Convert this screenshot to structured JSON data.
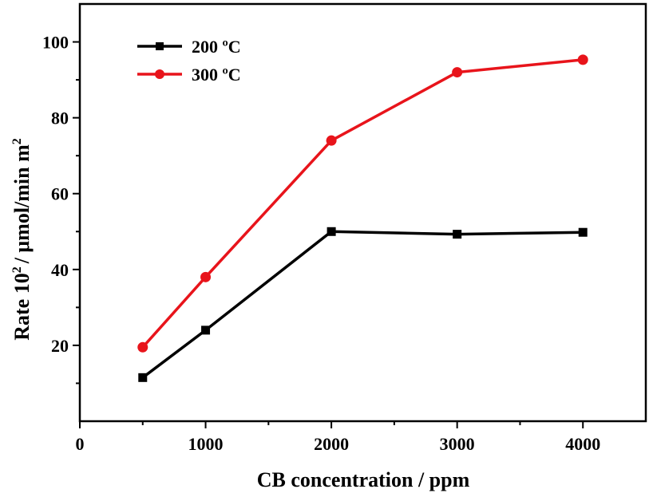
{
  "chart_data": {
    "type": "line",
    "title": "",
    "xlabel": "CB concentration / ppm",
    "ylabel": {
      "prefix": "Rate 10",
      "prefix_sup": "2",
      "middle": "/ μmol/min m",
      "suffix_sup": "2"
    },
    "xlim": [
      0,
      4500
    ],
    "ylim": [
      0,
      110
    ],
    "x_ticks": [
      0,
      1000,
      2000,
      3000,
      4000
    ],
    "x_minor_ticks": [
      500,
      1500,
      2500,
      3500
    ],
    "y_ticks": [
      20,
      40,
      60,
      80,
      100
    ],
    "y_minor_ticks": [
      10,
      30,
      50,
      70,
      90
    ],
    "grid": false,
    "legend_position": "top-left",
    "x": [
      500,
      1000,
      2000,
      3000,
      4000
    ],
    "series": [
      {
        "name": "200 ºC",
        "values": [
          11.5,
          24,
          50,
          49.3,
          49.8
        ],
        "color": "#000000",
        "marker": "square"
      },
      {
        "name": "300 ºC",
        "values": [
          19.5,
          38,
          74,
          92,
          95.3
        ],
        "color": "#e8141b",
        "marker": "circle"
      }
    ]
  }
}
